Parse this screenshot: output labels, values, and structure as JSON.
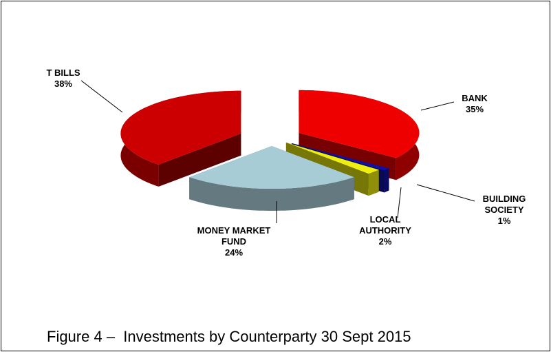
{
  "chart_data": {
    "type": "pie",
    "title": "Figure 4 –  Investments by Counterparty 30 Sept 2015",
    "categories": [
      "BANK",
      "BUILDING\nSOCIETY",
      "LOCAL\nAUTHORITY",
      "MONEY MARKET\nFUND",
      "T BILLS"
    ],
    "values": [
      35,
      1,
      2,
      24,
      38
    ],
    "value_labels": [
      "35%",
      "1%",
      "2%",
      "24%",
      "38%"
    ],
    "colors": [
      "#ee0000",
      "#1010a8",
      "#eeee10",
      "#a8ccd6",
      "#cc0000"
    ]
  }
}
